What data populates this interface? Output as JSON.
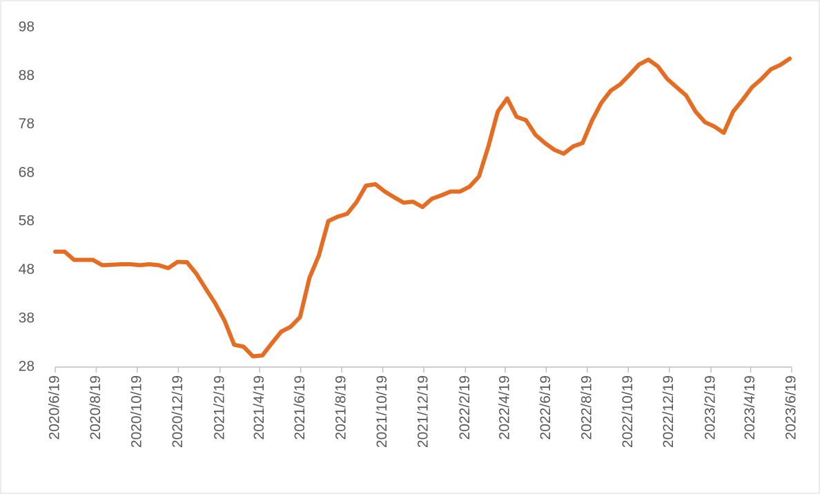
{
  "chart_data": {
    "type": "line",
    "x": [
      "2020/6/19",
      "2020/7/3",
      "2020/7/17",
      "2020/7/31",
      "2020/8/14",
      "2020/8/28",
      "2020/9/11",
      "2020/9/25",
      "2020/10/9",
      "2020/10/23",
      "2020/11/6",
      "2020/11/20",
      "2020/12/4",
      "2020/12/18",
      "2021/1/1",
      "2021/1/15",
      "2021/1/29",
      "2021/2/12",
      "2021/2/26",
      "2021/3/12",
      "2021/3/26",
      "2021/4/9",
      "2021/4/23",
      "2021/5/7",
      "2021/5/21",
      "2021/6/4",
      "2021/6/18",
      "2021/7/2",
      "2021/7/16",
      "2021/7/30",
      "2021/8/13",
      "2021/8/27",
      "2021/9/10",
      "2021/9/24",
      "2021/10/8",
      "2021/10/22",
      "2021/11/5",
      "2021/11/19",
      "2021/12/3",
      "2021/12/17",
      "2021/12/31",
      "2022/1/14",
      "2022/1/28",
      "2022/2/11",
      "2022/2/25",
      "2022/3/11",
      "2022/3/25",
      "2022/4/8",
      "2022/4/22",
      "2022/5/6",
      "2022/5/20",
      "2022/6/3",
      "2022/6/17",
      "2022/7/1",
      "2022/7/15",
      "2022/7/29",
      "2022/8/12",
      "2022/8/26",
      "2022/9/9",
      "2022/9/23",
      "2022/10/7",
      "2022/10/21",
      "2022/11/4",
      "2022/11/18",
      "2022/12/2",
      "2022/12/16",
      "2022/12/30",
      "2023/1/13",
      "2023/1/27",
      "2023/2/10",
      "2023/2/24",
      "2023/3/10",
      "2023/3/24",
      "2023/4/7",
      "2023/4/21",
      "2023/5/5",
      "2023/5/19",
      "2023/6/2",
      "2023/6/16"
    ],
    "series": [
      {
        "color": "#e46c23",
        "values": [
          51.8,
          51.8,
          50.1,
          50.1,
          50.1,
          49,
          49.1,
          49.2,
          49.2,
          49,
          49.2,
          49,
          48.4,
          49.7,
          49.6,
          47.2,
          44.1,
          41.1,
          37.5,
          32.6,
          32.2,
          30.2,
          30.4,
          32.9,
          35.3,
          36.3,
          38.3,
          46.4,
          51,
          58.1,
          59,
          59.6,
          62,
          65.4,
          65.7,
          64.2,
          63,
          61.9,
          62.1,
          61,
          62.7,
          63.4,
          64.2,
          64.2,
          65.2,
          67.3,
          73.5,
          80.7,
          83.4,
          79.6,
          78.9,
          75.9,
          74.2,
          72.8,
          72,
          73.5,
          74.2,
          78.8,
          82.5,
          85,
          86.3,
          88.3,
          90.4,
          91.4,
          90,
          87.4,
          85.7,
          84,
          80.7,
          78.5,
          77.6,
          76.3,
          80.7,
          83.1,
          85.7,
          87.4,
          89.4,
          90.3,
          91.6
        ]
      }
    ],
    "xlim": [
      "2020/6/19",
      "2023/6/19"
    ],
    "xticks": [
      "2020/6/19",
      "2020/8/19",
      "2020/10/19",
      "2020/12/19",
      "2021/2/19",
      "2021/4/19",
      "2021/6/19",
      "2021/8/19",
      "2021/10/19",
      "2021/12/19",
      "2022/2/19",
      "2022/4/19",
      "2022/6/19",
      "2022/8/19",
      "2022/10/19",
      "2022/12/19",
      "2023/2/19",
      "2023/4/19",
      "2023/6/19"
    ],
    "ylim": [
      28,
      98
    ],
    "yticks": [
      28,
      38,
      48,
      58,
      68,
      78,
      88,
      98
    ],
    "grid": false
  }
}
